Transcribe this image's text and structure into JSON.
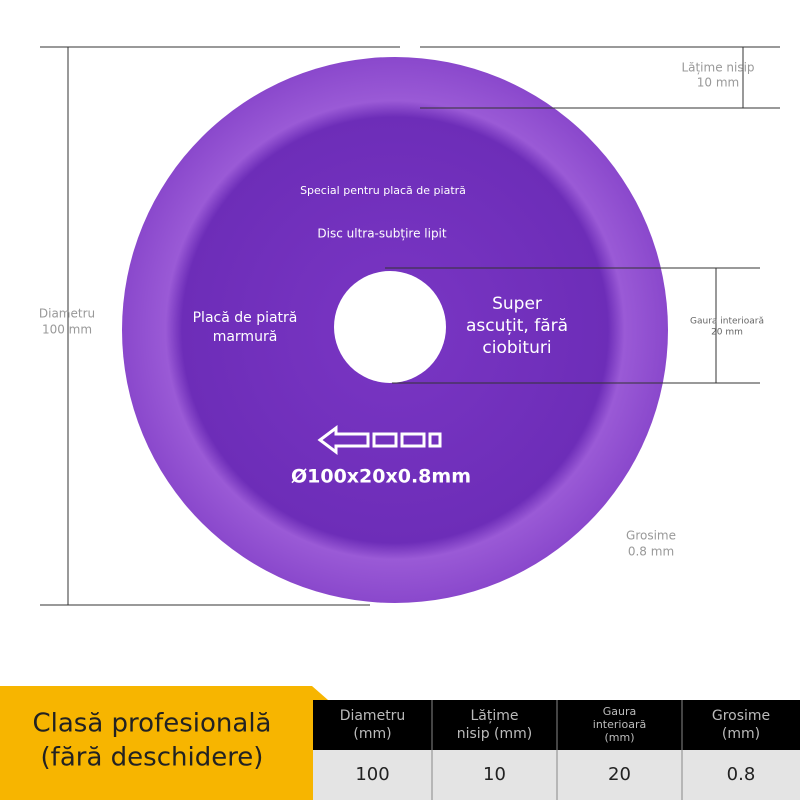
{
  "disc": {
    "top_line": "Special pentru placă de piatră",
    "second_line": "Disc ultra-subțire lipit",
    "left_text": [
      "Placă de piatră",
      "marmură"
    ],
    "right_text": [
      "Super",
      "ascuțit, fără",
      "ciobituri"
    ],
    "size_mark": "Ø100x20x0.8mm"
  },
  "annotations": {
    "diameter": [
      "Diametru",
      "100 mm"
    ],
    "grit_width": [
      "Lățime nisip",
      "10 mm"
    ],
    "inner_hole": [
      "Gaura interioară",
      "20 mm"
    ],
    "thickness": [
      "Grosime",
      "0.8 mm"
    ]
  },
  "banner": [
    "Clasă profesională",
    "(fără deschidere)"
  ],
  "table": {
    "headers": [
      [
        "Diametru",
        "(mm)"
      ],
      [
        "Lățime",
        "nisip (mm)"
      ],
      [
        "Gaura",
        "interioară",
        "(mm)"
      ],
      [
        "Grosime",
        "(mm)"
      ]
    ],
    "values": [
      "100",
      "10",
      "20",
      "0.8"
    ]
  }
}
